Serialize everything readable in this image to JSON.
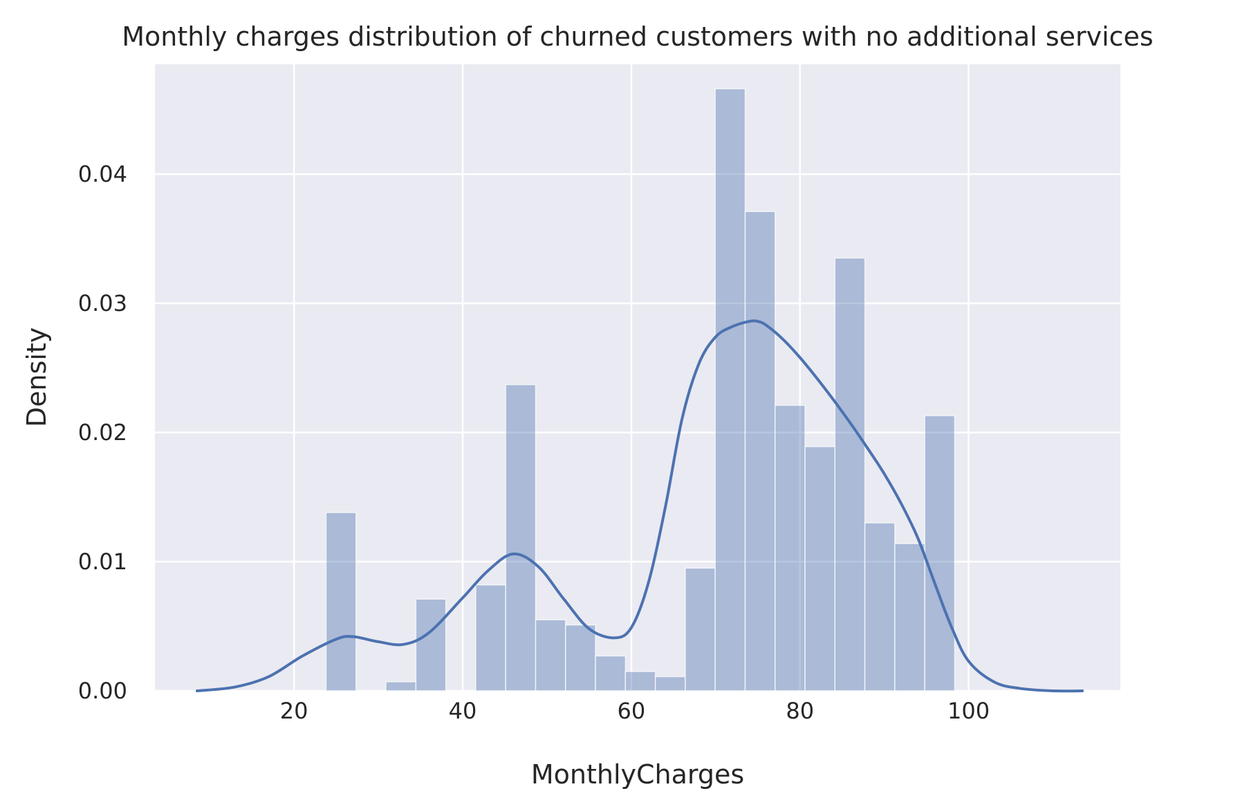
{
  "chart_data": {
    "type": "bar",
    "title": "Monthly charges distribution of churned customers with no additional services",
    "xlabel": "MonthlyCharges",
    "ylabel": "Density",
    "xlim": [
      3.5,
      118.0
    ],
    "ylim": [
      0,
      0.0485
    ],
    "grid": true,
    "legend": "none",
    "x_ticks": [
      20,
      40,
      60,
      80,
      100
    ],
    "x_tick_labels": [
      "20",
      "40",
      "60",
      "80",
      "100"
    ],
    "y_ticks": [
      0.0,
      0.01,
      0.02,
      0.03,
      0.04
    ],
    "y_tick_labels": [
      "0.00",
      "0.01",
      "0.02",
      "0.03",
      "0.04"
    ],
    "histogram": {
      "bin_edges": [
        23.8,
        27.35,
        30.9,
        34.45,
        38.0,
        41.55,
        45.1,
        48.65,
        52.2,
        55.75,
        59.3,
        62.85,
        66.4,
        69.95,
        73.5,
        77.05,
        80.6,
        84.15,
        87.7,
        91.25,
        94.8,
        98.35
      ],
      "values": [
        0.0138,
        0.0,
        0.0007,
        0.0071,
        0.0,
        0.0082,
        0.0237,
        0.0055,
        0.0051,
        0.0027,
        0.0015,
        0.0011,
        0.0095,
        0.0466,
        0.0371,
        0.0221,
        0.0189,
        0.0335,
        0.013,
        0.0114,
        0.0213
      ],
      "color": "#4c72b0",
      "alpha": 0.4
    },
    "kde": {
      "color": "#4c72b0",
      "x": [
        8.5,
        13,
        17,
        21,
        25,
        27,
        30,
        33,
        36,
        40,
        43,
        46,
        49,
        52,
        55,
        58,
        60,
        62,
        64,
        66,
        68,
        70,
        72,
        74,
        75,
        76,
        78,
        80,
        82,
        84,
        86,
        88,
        90,
        92,
        94,
        96,
        98,
        100,
        103,
        106,
        110,
        113.5
      ],
      "y": [
        0.0,
        0.0003,
        0.0011,
        0.0027,
        0.004,
        0.0042,
        0.0038,
        0.0036,
        0.0045,
        0.0072,
        0.0093,
        0.0106,
        0.0096,
        0.0071,
        0.0048,
        0.0041,
        0.0049,
        0.0083,
        0.0141,
        0.021,
        0.0253,
        0.0274,
        0.0282,
        0.0286,
        0.0286,
        0.0283,
        0.0272,
        0.0258,
        0.0242,
        0.0225,
        0.0207,
        0.0188,
        0.0168,
        0.0145,
        0.0118,
        0.0083,
        0.0049,
        0.0023,
        0.0007,
        0.0002,
        0.0,
        0.0
      ]
    }
  }
}
